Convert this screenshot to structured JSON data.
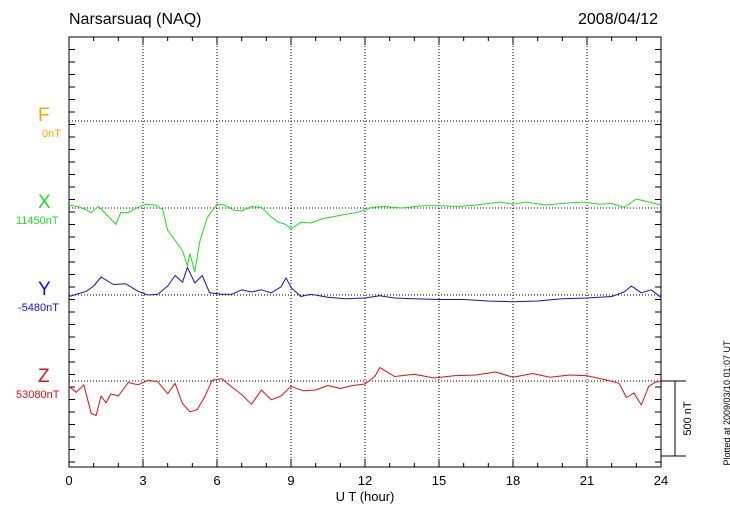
{
  "header": {
    "station": "Narsarsuaq (NAQ)",
    "date": "2008/04/12"
  },
  "footer": {
    "plotted": "Plotted at 2009/03/10 01:07 UT"
  },
  "components": [
    {
      "letter": "F",
      "baseline": "0nT",
      "color": "#f0a800"
    },
    {
      "letter": "X",
      "baseline": "11450nT",
      "color": "#22dd22"
    },
    {
      "letter": "Y",
      "baseline": "-5480nT",
      "color": "#1010dd"
    },
    {
      "letter": "Z",
      "baseline": "53080nT",
      "color": "#e01010"
    }
  ],
  "scale_bar": {
    "label": "500 nT",
    "value_nT": 500
  },
  "chart_data": {
    "type": "line",
    "xlabel": "U T (hour)",
    "xlim": [
      0,
      24
    ],
    "xticks": [
      "0",
      "3",
      "6",
      "9",
      "12",
      "15",
      "18",
      "21",
      "24"
    ],
    "y_unit": "nT",
    "grid": true,
    "series": [
      {
        "name": "X",
        "baseline": 11450,
        "color": "#22dd22",
        "x": [
          0,
          0.5,
          0.9,
          1.2,
          1.5,
          1.9,
          2.1,
          2.4,
          2.8,
          3.1,
          3.5,
          3.8,
          4.0,
          4.3,
          4.6,
          4.8,
          4.9,
          5.1,
          5.3,
          5.6,
          6.0,
          6.3,
          6.7,
          7.0,
          7.4,
          7.8,
          8.2,
          8.5,
          8.8,
          9.0,
          9.4,
          9.8,
          10.3,
          10.8,
          11.3,
          11.8,
          12.3,
          12.8,
          13.5,
          14.3,
          15.0,
          15.8,
          16.5,
          17.5,
          18.0,
          18.5,
          19.3,
          20.0,
          20.8,
          21.5,
          22.0,
          22.5,
          23.0,
          23.5,
          24.0
        ],
        "y": [
          20,
          5,
          -30,
          10,
          -40,
          -110,
          -30,
          -30,
          5,
          25,
          20,
          -10,
          -150,
          -215,
          -285,
          -385,
          -305,
          -425,
          -225,
          -65,
          25,
          20,
          -15,
          -20,
          10,
          5,
          -60,
          -95,
          -110,
          -140,
          -95,
          -100,
          -70,
          -55,
          -40,
          -25,
          5,
          10,
          0,
          15,
          15,
          10,
          20,
          40,
          25,
          40,
          20,
          30,
          40,
          25,
          30,
          5,
          60,
          40,
          20
        ]
      },
      {
        "name": "Y",
        "baseline": -5480,
        "color": "#1010dd",
        "x": [
          0,
          0.4,
          0.7,
          1.0,
          1.3,
          1.8,
          2.3,
          2.8,
          3.2,
          3.6,
          4.0,
          4.3,
          4.6,
          4.8,
          5.1,
          5.4,
          5.7,
          6.2,
          6.6,
          7.0,
          7.4,
          7.8,
          8.2,
          8.6,
          8.8,
          9.0,
          9.4,
          9.8,
          10.5,
          11.2,
          12.0,
          12.6,
          13.2,
          14.0,
          15.0,
          16.0,
          17.0,
          18.0,
          19.0,
          20.0,
          21.0,
          22.0,
          22.5,
          22.8,
          23.2,
          23.6,
          24.0
        ],
        "y": [
          -10,
          10,
          25,
          60,
          120,
          70,
          75,
          25,
          0,
          5,
          60,
          130,
          85,
          185,
          80,
          130,
          15,
          5,
          5,
          35,
          20,
          35,
          15,
          55,
          115,
          50,
          -10,
          5,
          -15,
          -25,
          -20,
          -5,
          -20,
          -25,
          -30,
          -30,
          -40,
          -45,
          -40,
          -25,
          -20,
          -10,
          20,
          60,
          15,
          35,
          -15
        ]
      },
      {
        "name": "Z",
        "baseline": 53080,
        "color": "#e01010",
        "x": [
          0,
          0.3,
          0.6,
          0.9,
          1.1,
          1.3,
          1.5,
          1.7,
          2.0,
          2.4,
          2.8,
          3.2,
          3.6,
          4.0,
          4.3,
          4.6,
          4.9,
          5.2,
          5.5,
          5.8,
          6.2,
          6.6,
          7.0,
          7.4,
          7.8,
          8.2,
          8.6,
          9.0,
          9.5,
          10.0,
          10.5,
          11.0,
          11.5,
          12.0,
          12.4,
          12.6,
          13.2,
          14.0,
          14.8,
          15.6,
          16.5,
          17.3,
          18.0,
          18.8,
          19.5,
          20.3,
          21.0,
          21.7,
          22.3,
          22.6,
          22.9,
          23.2,
          23.5,
          23.8,
          24.0
        ],
        "y": [
          -35,
          -75,
          -25,
          -215,
          -230,
          -100,
          -145,
          -85,
          -100,
          -10,
          -25,
          5,
          -5,
          -85,
          -15,
          -150,
          -205,
          -190,
          -105,
          5,
          15,
          -40,
          -90,
          -155,
          -60,
          -125,
          -100,
          -35,
          -65,
          -60,
          -30,
          -50,
          -30,
          -20,
          30,
          90,
          30,
          45,
          20,
          35,
          40,
          60,
          25,
          50,
          25,
          40,
          35,
          10,
          -15,
          -110,
          -80,
          -160,
          -35,
          -5,
          -5
        ]
      }
    ]
  }
}
